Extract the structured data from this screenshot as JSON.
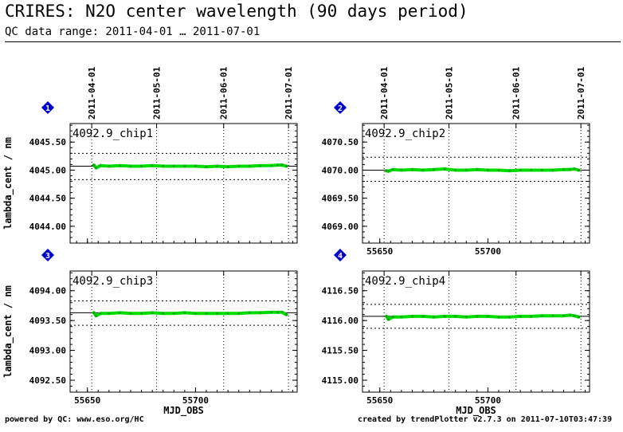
{
  "header": {
    "title": "CRIRES: N2O center wavelength (90 days period)",
    "subtitle": "QC data range: 2011-04-01 … 2011-07-01"
  },
  "footer": {
    "left": "powered by QC: www.eso.org/HC",
    "right": "created by trendPlotter v2.7.3 on 2011-07-10T03:47:39"
  },
  "colors": {
    "data": "#00dd00",
    "marker": "#0000cc",
    "frame": "#000000"
  },
  "date_ticks": [
    {
      "label": "2011-04-01",
      "mjd": 55652
    },
    {
      "label": "2011-05-01",
      "mjd": 55682
    },
    {
      "label": "2011-06-01",
      "mjd": 55713
    },
    {
      "label": "2011-07-01",
      "mjd": 55743
    }
  ],
  "chart_data": [
    {
      "type": "line",
      "panel_number": "1",
      "label": "4092.9_chip1",
      "ylabel": "lambda_cent / nm",
      "xlabel": "",
      "xlim": [
        55642,
        55747
      ],
      "xticks": [
        {
          "value": 55650,
          "label": ""
        },
        {
          "value": 55700,
          "label": ""
        }
      ],
      "ylim": [
        4043.7,
        4045.83
      ],
      "yticks": [
        {
          "value": 4044.0,
          "label": "4044.00"
        },
        {
          "value": 4044.5,
          "label": "4044.50"
        },
        {
          "value": 4045.0,
          "label": "4045.00"
        },
        {
          "value": 4045.5,
          "label": "4045.50"
        }
      ],
      "reference_line": 4045.07,
      "band": [
        4045.3,
        4044.83
      ],
      "series": [
        {
          "x": [
            55653,
            55654,
            55656,
            55660,
            55665,
            55670,
            55675,
            55680,
            55685,
            55690,
            55695,
            55700,
            55705,
            55710,
            55715,
            55720,
            55725,
            55730,
            55735,
            55738,
            55740,
            55742
          ],
          "y": [
            4045.09,
            4045.04,
            4045.08,
            4045.07,
            4045.08,
            4045.07,
            4045.07,
            4045.08,
            4045.07,
            4045.07,
            4045.07,
            4045.07,
            4045.06,
            4045.07,
            4045.06,
            4045.07,
            4045.07,
            4045.08,
            4045.08,
            4045.09,
            4045.09,
            4045.07
          ]
        }
      ]
    },
    {
      "type": "line",
      "panel_number": "2",
      "label": "4092.9_chip2",
      "ylabel": "",
      "xlabel": "",
      "xlim": [
        55642,
        55747
      ],
      "xticks": [
        {
          "value": 55650,
          "label": "55650"
        },
        {
          "value": 55700,
          "label": "55700"
        }
      ],
      "ylim": [
        4068.7,
        4070.83
      ],
      "yticks": [
        {
          "value": 4069.0,
          "label": "4069.00"
        },
        {
          "value": 4069.5,
          "label": "4069.50"
        },
        {
          "value": 4070.0,
          "label": "4070.00"
        },
        {
          "value": 4070.5,
          "label": "4070.50"
        }
      ],
      "reference_line": 4070.0,
      "band": [
        4070.23,
        4069.8
      ],
      "series": [
        {
          "x": [
            55653,
            55654,
            55656,
            55660,
            55665,
            55670,
            55675,
            55680,
            55685,
            55690,
            55695,
            55700,
            55705,
            55710,
            55715,
            55720,
            55725,
            55730,
            55735,
            55738,
            55740,
            55742
          ],
          "y": [
            4069.99,
            4069.98,
            4070.01,
            4070.0,
            4070.01,
            4070.0,
            4070.01,
            4070.02,
            4070.0,
            4070.0,
            4070.01,
            4070.0,
            4070.0,
            4069.99,
            4070.0,
            4070.0,
            4070.0,
            4070.0,
            4070.01,
            4070.01,
            4070.02,
            4070.0
          ]
        }
      ]
    },
    {
      "type": "line",
      "panel_number": "3",
      "label": "4092.9_chip3",
      "ylabel": "lambda_cent / nm",
      "xlabel": "MJD_OBS",
      "xlim": [
        55642,
        55747
      ],
      "xticks": [
        {
          "value": 55650,
          "label": "55650"
        },
        {
          "value": 55700,
          "label": "55700"
        }
      ],
      "ylim": [
        4092.3,
        4094.33
      ],
      "yticks": [
        {
          "value": 4092.5,
          "label": "4092.50"
        },
        {
          "value": 4093.0,
          "label": "4093.00"
        },
        {
          "value": 4093.5,
          "label": "4093.50"
        },
        {
          "value": 4094.0,
          "label": "4094.00"
        }
      ],
      "reference_line": 4093.63,
      "band": [
        4093.83,
        4093.42
      ],
      "series": [
        {
          "x": [
            55653,
            55654,
            55656,
            55660,
            55665,
            55670,
            55675,
            55680,
            55685,
            55690,
            55695,
            55700,
            55705,
            55710,
            55715,
            55720,
            55725,
            55730,
            55735,
            55738,
            55740,
            55742
          ],
          "y": [
            4093.63,
            4093.58,
            4093.62,
            4093.62,
            4093.63,
            4093.62,
            4093.62,
            4093.63,
            4093.62,
            4093.62,
            4093.63,
            4093.62,
            4093.62,
            4093.62,
            4093.62,
            4093.62,
            4093.63,
            4093.63,
            4093.64,
            4093.64,
            4093.64,
            4093.6
          ]
        }
      ]
    },
    {
      "type": "line",
      "panel_number": "4",
      "label": "4092.9_chip4",
      "ylabel": "",
      "xlabel": "MJD_OBS",
      "xlim": [
        55642,
        55747
      ],
      "xticks": [
        {
          "value": 55650,
          "label": "55650"
        },
        {
          "value": 55700,
          "label": "55700"
        }
      ],
      "ylim": [
        4114.8,
        4116.83
      ],
      "yticks": [
        {
          "value": 4115.0,
          "label": "4115.00"
        },
        {
          "value": 4115.5,
          "label": "4115.50"
        },
        {
          "value": 4116.0,
          "label": "4116.00"
        },
        {
          "value": 4116.5,
          "label": "4116.50"
        }
      ],
      "reference_line": 4116.07,
      "band": [
        4116.27,
        4115.87
      ],
      "series": [
        {
          "x": [
            55653,
            55654,
            55656,
            55660,
            55665,
            55670,
            55675,
            55680,
            55685,
            55690,
            55695,
            55700,
            55705,
            55710,
            55715,
            55720,
            55725,
            55730,
            55735,
            55738,
            55740,
            55742
          ],
          "y": [
            4116.07,
            4116.02,
            4116.06,
            4116.06,
            4116.07,
            4116.07,
            4116.06,
            4116.07,
            4116.07,
            4116.06,
            4116.07,
            4116.07,
            4116.06,
            4116.06,
            4116.07,
            4116.07,
            4116.08,
            4116.08,
            4116.08,
            4116.09,
            4116.08,
            4116.06
          ]
        }
      ]
    }
  ]
}
